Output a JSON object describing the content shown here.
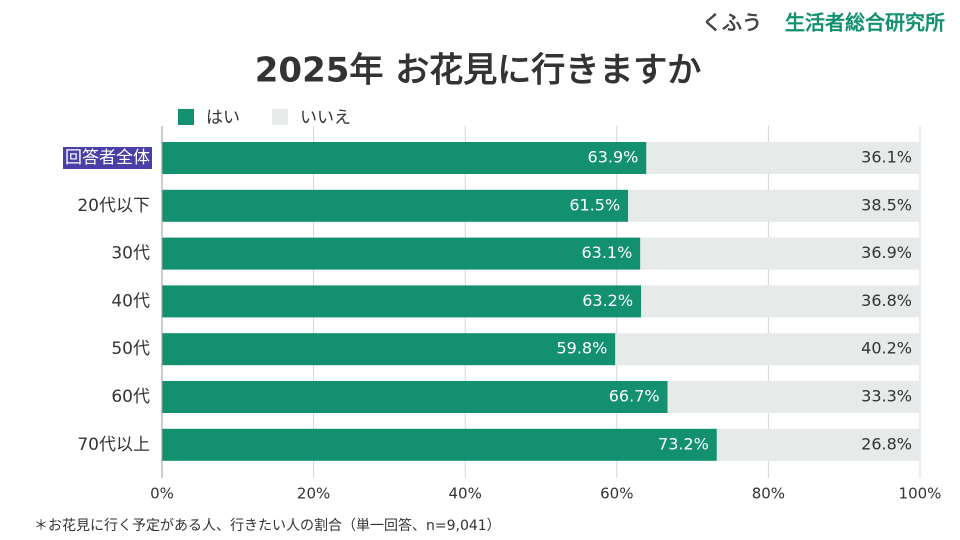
{
  "brand": {
    "prefix": "くふう",
    "name": "生活者総合研究所"
  },
  "chart_data": {
    "type": "stacked-barh",
    "title": "2025年 お花見に行きますか",
    "categories": [
      "回答者全体",
      "20代以下",
      "30代",
      "40代",
      "50代",
      "60代",
      "70代以上"
    ],
    "highlight_category": 0,
    "highlight_color": "#4a3fa6",
    "series": [
      {
        "name": "はい",
        "color": "#12906f",
        "values": [
          63.9,
          61.5,
          63.1,
          63.2,
          59.8,
          66.7,
          73.2
        ],
        "value_labels": [
          "63.9%",
          "61.5%",
          "63.1%",
          "63.2%",
          "59.8%",
          "66.7%",
          "73.2%"
        ]
      },
      {
        "name": "いいえ",
        "color": "#e6eae9",
        "values": [
          36.1,
          38.5,
          36.9,
          36.8,
          40.2,
          33.3,
          26.8
        ],
        "value_labels": [
          "36.1%",
          "38.5%",
          "36.9%",
          "36.8%",
          "40.2%",
          "33.3%",
          "26.8%"
        ]
      }
    ],
    "xlim": [
      0,
      100
    ],
    "xticks": [
      {
        "value": 0,
        "label": "0%"
      },
      {
        "value": 20,
        "label": "20%"
      },
      {
        "value": 40,
        "label": "40%"
      },
      {
        "value": 60,
        "label": "60%"
      },
      {
        "value": 80,
        "label": "80%"
      },
      {
        "value": 100,
        "label": "100%"
      }
    ],
    "grid": true,
    "note": "＊お花見に行く予定がある人、行きたい人の割合（単一回答、n=9,041）"
  }
}
